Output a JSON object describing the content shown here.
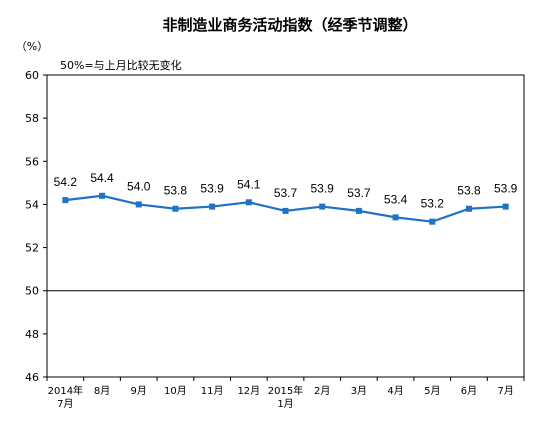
{
  "chart_data": {
    "type": "line",
    "title": "非制造业商务活动指数（经季节调整）",
    "unit_label": "（%）",
    "annotation": "50%=与上月比较无变化",
    "categories": [
      [
        "2014年",
        "7月"
      ],
      [
        "8月"
      ],
      [
        "9月"
      ],
      [
        "10月"
      ],
      [
        "11月"
      ],
      [
        "12月"
      ],
      [
        "2015年",
        "1月"
      ],
      [
        "2月"
      ],
      [
        "3月"
      ],
      [
        "4月"
      ],
      [
        "5月"
      ],
      [
        "6月"
      ],
      [
        "7月"
      ]
    ],
    "series": [
      {
        "values": [
          54.2,
          54.4,
          54.0,
          53.8,
          53.9,
          54.1,
          53.7,
          53.9,
          53.7,
          53.4,
          53.2,
          53.8,
          53.9
        ]
      }
    ],
    "value_labels": [
      "54.2",
      "54.4",
      "54.0",
      "53.8",
      "53.9",
      "54.1",
      "53.7",
      "53.9",
      "53.7",
      "53.4",
      "53.2",
      "53.8",
      "53.9"
    ],
    "yticks": [
      46,
      48,
      50,
      52,
      54,
      56,
      58,
      60
    ],
    "ylim": [
      46,
      60
    ],
    "reference_line": 50,
    "grid": false,
    "color": "#1f72c4"
  }
}
